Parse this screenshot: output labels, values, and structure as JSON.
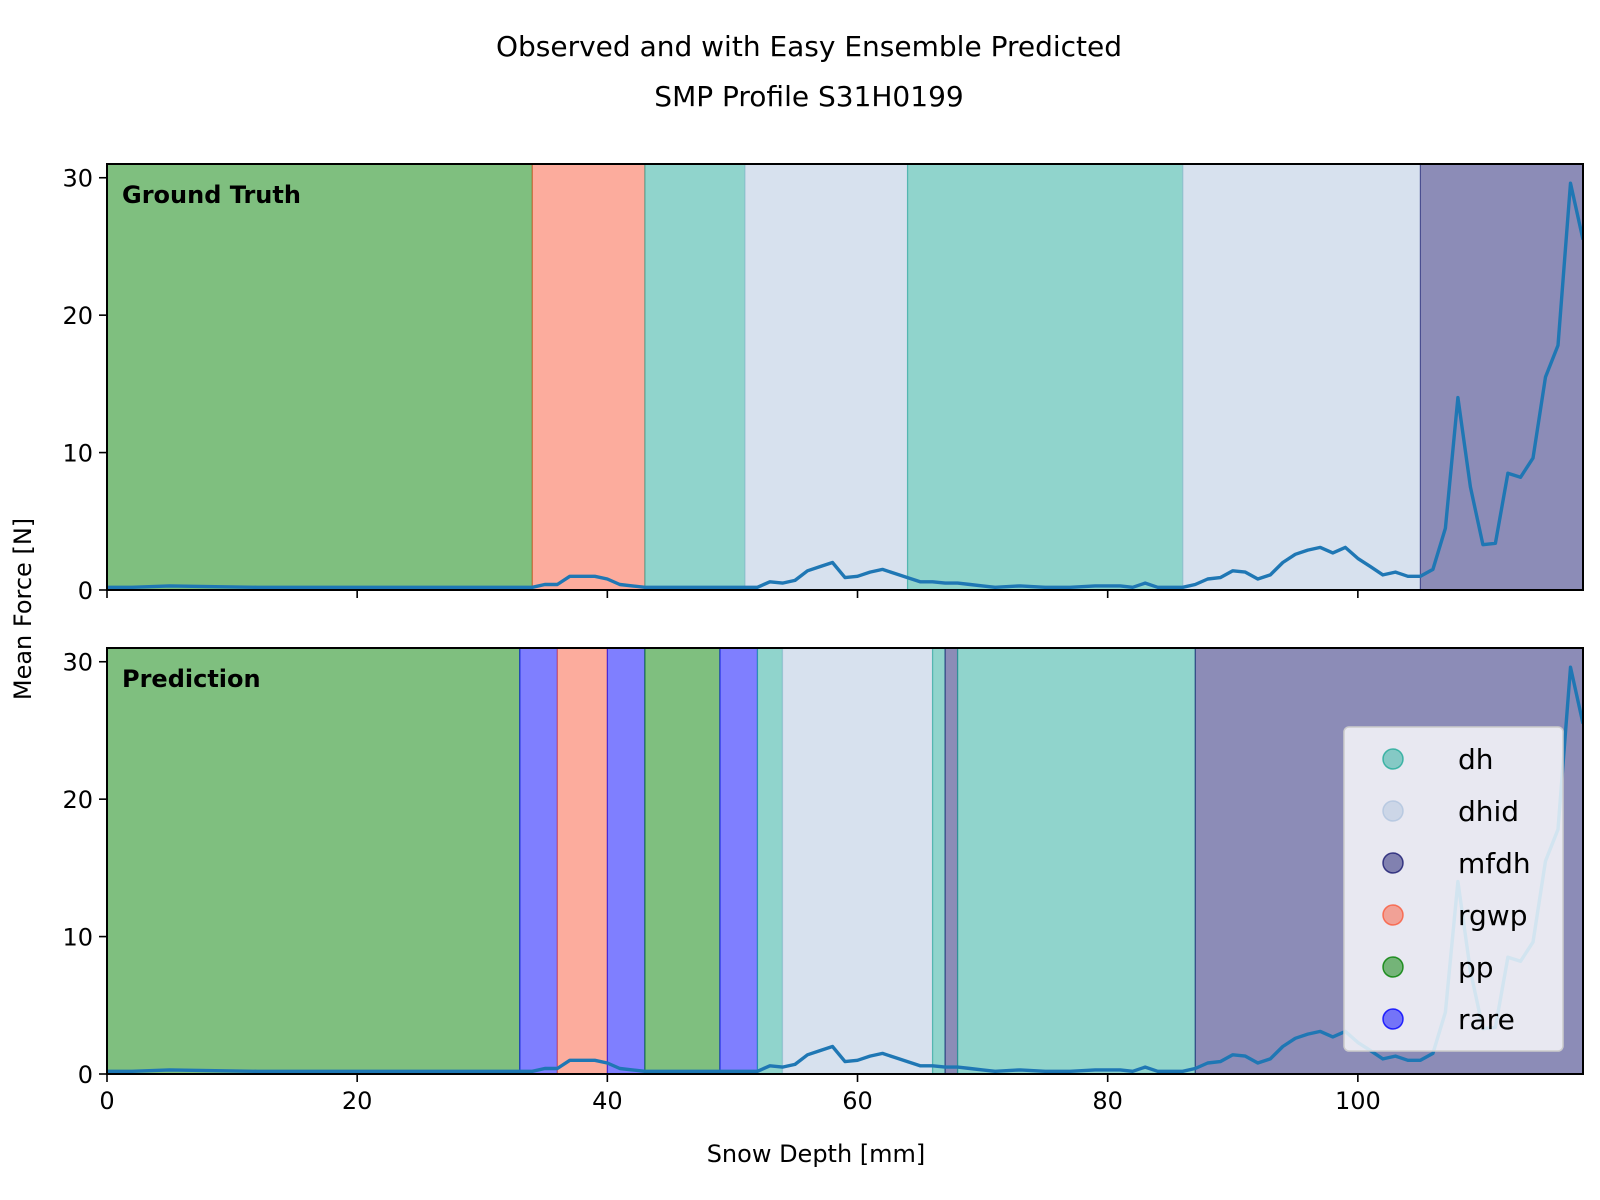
{
  "chart_data": {
    "type": "line",
    "title": [
      "Observed and with Easy Ensemble Predicted",
      "SMP Profile S31H0199"
    ],
    "xlabel": "Snow Depth [mm]",
    "ylabel": "Mean Force [N]",
    "xlim": [
      0,
      118
    ],
    "ylim": [
      0,
      31
    ],
    "xticks": [
      0,
      20,
      40,
      60,
      80,
      100
    ],
    "yticks": [
      0,
      10,
      20,
      30
    ],
    "grid": false,
    "legend": {
      "location": "lower right of bottom panel",
      "entries": [
        {
          "label": "dh",
          "color": "#22aa99"
        },
        {
          "label": "dhid",
          "color": "#b0c4de"
        },
        {
          "label": "mfdh",
          "color": "#191970"
        },
        {
          "label": "rgwp",
          "color": "#fa5a3c"
        },
        {
          "label": "pp",
          "color": "#008000"
        },
        {
          "label": "rare",
          "color": "#0000ff"
        }
      ]
    },
    "panels": [
      {
        "label": "Ground Truth",
        "segments": [
          {
            "start": 0,
            "end": 34,
            "class": "pp"
          },
          {
            "start": 34,
            "end": 43,
            "class": "rgwp"
          },
          {
            "start": 43,
            "end": 51,
            "class": "dh"
          },
          {
            "start": 51,
            "end": 64,
            "class": "dhid"
          },
          {
            "start": 64,
            "end": 86,
            "class": "dh"
          },
          {
            "start": 86,
            "end": 105,
            "class": "dhid"
          },
          {
            "start": 105,
            "end": 118,
            "class": "mfdh"
          }
        ]
      },
      {
        "label": "Prediction",
        "segments": [
          {
            "start": 0,
            "end": 33,
            "class": "pp"
          },
          {
            "start": 33,
            "end": 36,
            "class": "rare"
          },
          {
            "start": 36,
            "end": 40,
            "class": "rgwp"
          },
          {
            "start": 40,
            "end": 43,
            "class": "rare"
          },
          {
            "start": 43,
            "end": 49,
            "class": "pp"
          },
          {
            "start": 49,
            "end": 52,
            "class": "rare"
          },
          {
            "start": 52,
            "end": 54,
            "class": "dh"
          },
          {
            "start": 54,
            "end": 66,
            "class": "dhid"
          },
          {
            "start": 66,
            "end": 67,
            "class": "dh"
          },
          {
            "start": 67,
            "end": 68,
            "class": "mfdh"
          },
          {
            "start": 68,
            "end": 87,
            "class": "dh"
          },
          {
            "start": 87,
            "end": 118,
            "class": "mfdh"
          }
        ]
      }
    ],
    "series": [
      {
        "x": [
          0,
          2,
          5,
          8,
          12,
          20,
          30,
          33,
          34,
          35,
          36,
          37,
          38,
          39,
          40,
          41,
          42,
          43,
          45,
          50,
          51,
          52,
          53,
          54,
          55,
          56,
          57,
          58,
          59,
          60,
          61,
          62,
          63,
          64,
          65,
          66,
          67,
          68,
          69,
          70,
          71,
          73,
          75,
          77,
          79,
          80,
          81,
          82,
          83,
          84,
          85,
          86,
          87,
          88,
          89,
          90,
          91,
          92,
          93,
          94,
          95,
          96,
          97,
          98,
          99,
          100,
          101,
          102,
          103,
          104,
          105,
          106,
          107,
          108,
          109,
          110,
          111,
          112,
          113,
          114,
          115,
          116,
          117,
          118
        ],
        "y": [
          0.2,
          0.2,
          0.3,
          0.25,
          0.2,
          0.2,
          0.2,
          0.2,
          0.2,
          0.4,
          0.4,
          1.0,
          1.0,
          1.0,
          0.8,
          0.4,
          0.3,
          0.2,
          0.2,
          0.2,
          0.2,
          0.2,
          0.6,
          0.5,
          0.7,
          1.4,
          1.7,
          2.0,
          0.9,
          1.0,
          1.3,
          1.5,
          1.2,
          0.9,
          0.6,
          0.6,
          0.5,
          0.5,
          0.4,
          0.3,
          0.2,
          0.3,
          0.2,
          0.2,
          0.3,
          0.3,
          0.3,
          0.2,
          0.5,
          0.2,
          0.2,
          0.2,
          0.4,
          0.8,
          0.9,
          1.4,
          1.3,
          0.8,
          1.1,
          2.0,
          2.6,
          2.9,
          3.1,
          2.7,
          3.1,
          2.3,
          1.7,
          1.1,
          1.3,
          1.0,
          1.0,
          1.5,
          4.5,
          14.0,
          7.5,
          3.3,
          3.4,
          8.5,
          8.2,
          9.6,
          15.5,
          17.8,
          29.6,
          25.5
        ]
      }
    ]
  }
}
